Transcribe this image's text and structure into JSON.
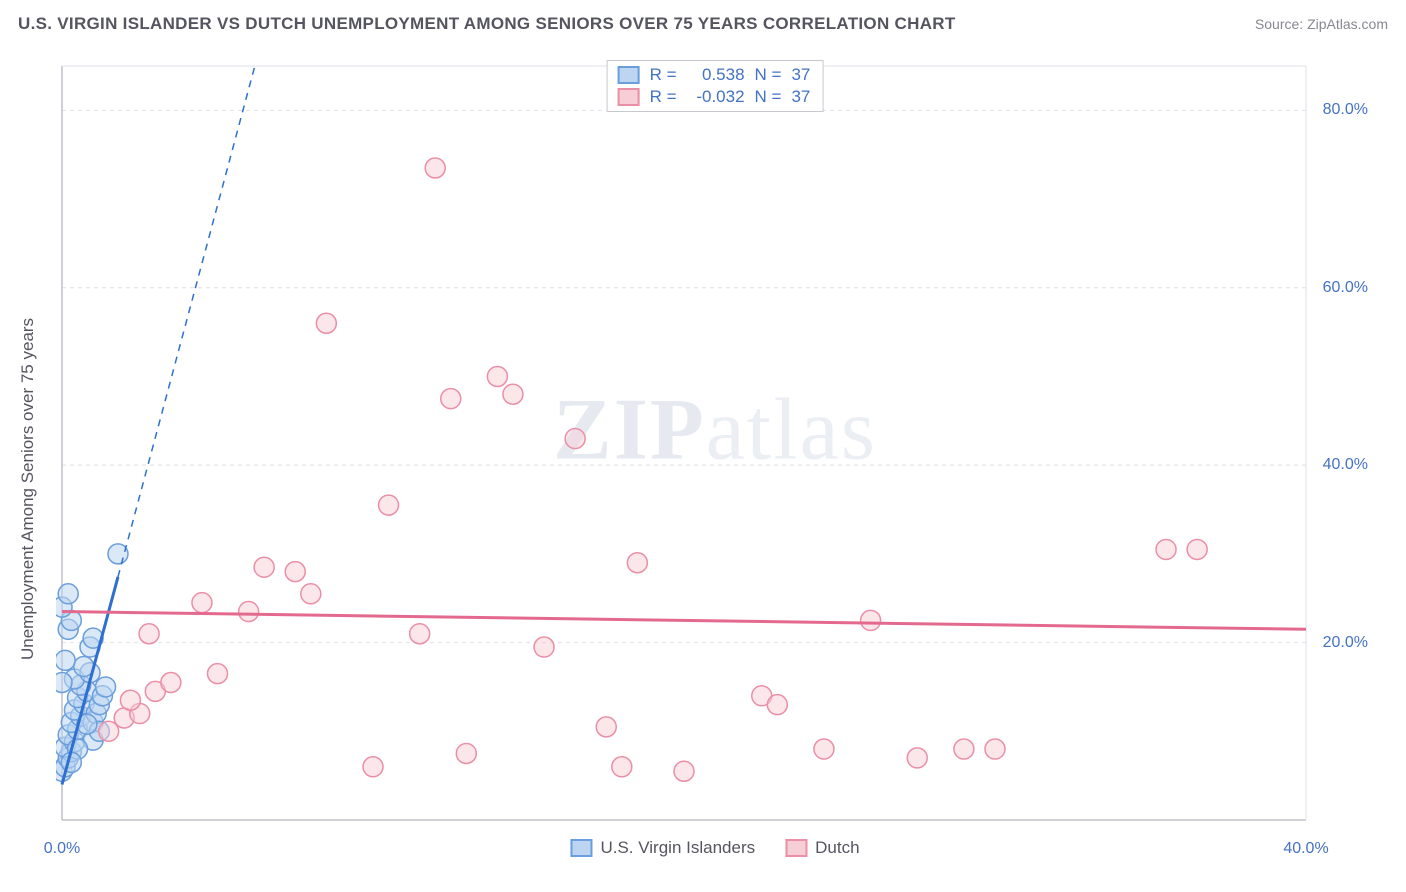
{
  "header": {
    "title": "U.S. VIRGIN ISLANDER VS DUTCH UNEMPLOYMENT AMONG SENIORS OVER 75 YEARS CORRELATION CHART",
    "source": "Source: ZipAtlas.com"
  },
  "chart": {
    "type": "scatter",
    "ylabel": "Unemployment Among Seniors over 75 years",
    "watermark_prefix": "ZIP",
    "watermark_suffix": "atlas",
    "xlim": [
      0,
      40
    ],
    "ylim": [
      0,
      85
    ],
    "xticks": [
      {
        "v": 0,
        "label": "0.0%"
      },
      {
        "v": 40,
        "label": "40.0%"
      }
    ],
    "yticks": [
      {
        "v": 20,
        "label": "20.0%"
      },
      {
        "v": 40,
        "label": "40.0%"
      },
      {
        "v": 60,
        "label": "60.0%"
      },
      {
        "v": 80,
        "label": "80.0%"
      }
    ],
    "gridline_color": "#e0e0e8",
    "axis_color": "#bfbfc8",
    "background_color": "#ffffff",
    "marker_radius": 10,
    "marker_stroke_width": 1.5,
    "series": [
      {
        "name": "usvi",
        "label": "U.S. Virgin Islanders",
        "fill": "#bcd5f0",
        "stroke": "#6a9edc",
        "fill_opacity": 0.55,
        "R": "0.538",
        "N": "37",
        "trend": {
          "slope": 13.0,
          "intercept": 4.0,
          "color": "#2e6fd0",
          "width": 3,
          "dash": "7 6"
        },
        "points": [
          [
            0.0,
            5.5
          ],
          [
            0.1,
            6.0
          ],
          [
            0.2,
            7.0
          ],
          [
            0.3,
            7.7
          ],
          [
            0.1,
            8.2
          ],
          [
            0.4,
            8.8
          ],
          [
            0.2,
            9.6
          ],
          [
            0.5,
            10.2
          ],
          [
            0.3,
            11.0
          ],
          [
            0.6,
            11.7
          ],
          [
            0.4,
            12.4
          ],
          [
            0.7,
            13.1
          ],
          [
            0.5,
            13.8
          ],
          [
            0.8,
            14.5
          ],
          [
            0.6,
            15.2
          ],
          [
            0.4,
            15.9
          ],
          [
            0.9,
            16.6
          ],
          [
            0.7,
            17.3
          ],
          [
            0.1,
            18.0
          ],
          [
            1.0,
            11.0
          ],
          [
            1.1,
            12.0
          ],
          [
            1.2,
            13.0
          ],
          [
            1.3,
            14.0
          ],
          [
            1.4,
            15.0
          ],
          [
            1.0,
            9.0
          ],
          [
            1.2,
            10.0
          ],
          [
            0.9,
            19.5
          ],
          [
            1.0,
            20.5
          ],
          [
            0.2,
            21.5
          ],
          [
            0.3,
            22.5
          ],
          [
            0.0,
            24.0
          ],
          [
            0.2,
            25.5
          ],
          [
            1.8,
            30.0
          ],
          [
            0.0,
            15.5
          ],
          [
            0.5,
            8.0
          ],
          [
            0.3,
            6.5
          ],
          [
            0.8,
            10.8
          ]
        ]
      },
      {
        "name": "dutch",
        "label": "Dutch",
        "fill": "#f7cdd6",
        "stroke": "#ea8fa5",
        "fill_opacity": 0.5,
        "R": "-0.032",
        "N": "37",
        "trend": {
          "slope": -0.05,
          "intercept": 23.5,
          "color": "#e36a8e",
          "width": 3,
          "dash": ""
        },
        "points": [
          [
            1.5,
            10.0
          ],
          [
            2.0,
            11.5
          ],
          [
            2.5,
            12.0
          ],
          [
            3.0,
            14.5
          ],
          [
            3.5,
            15.5
          ],
          [
            2.8,
            21.0
          ],
          [
            5.0,
            16.5
          ],
          [
            4.5,
            24.5
          ],
          [
            6.0,
            23.5
          ],
          [
            6.5,
            28.5
          ],
          [
            8.0,
            25.5
          ],
          [
            7.5,
            28.0
          ],
          [
            8.5,
            56.0
          ],
          [
            10.5,
            35.5
          ],
          [
            10.0,
            6.0
          ],
          [
            11.5,
            21.0
          ],
          [
            12.5,
            47.5
          ],
          [
            12.0,
            73.5
          ],
          [
            13.0,
            7.5
          ],
          [
            14.0,
            50.0
          ],
          [
            14.5,
            48.0
          ],
          [
            15.5,
            19.5
          ],
          [
            16.5,
            43.0
          ],
          [
            18.5,
            29.0
          ],
          [
            17.5,
            10.5
          ],
          [
            18.0,
            6.0
          ],
          [
            20.0,
            5.5
          ],
          [
            22.5,
            14.0
          ],
          [
            23.0,
            13.0
          ],
          [
            24.5,
            8.0
          ],
          [
            26.0,
            22.5
          ],
          [
            27.5,
            7.0
          ],
          [
            29.0,
            8.0
          ],
          [
            30.0,
            8.0
          ],
          [
            35.5,
            30.5
          ],
          [
            36.5,
            30.5
          ],
          [
            2.2,
            13.5
          ]
        ]
      }
    ]
  },
  "legend_top": {
    "r_label": "R =",
    "n_label": "N ="
  }
}
